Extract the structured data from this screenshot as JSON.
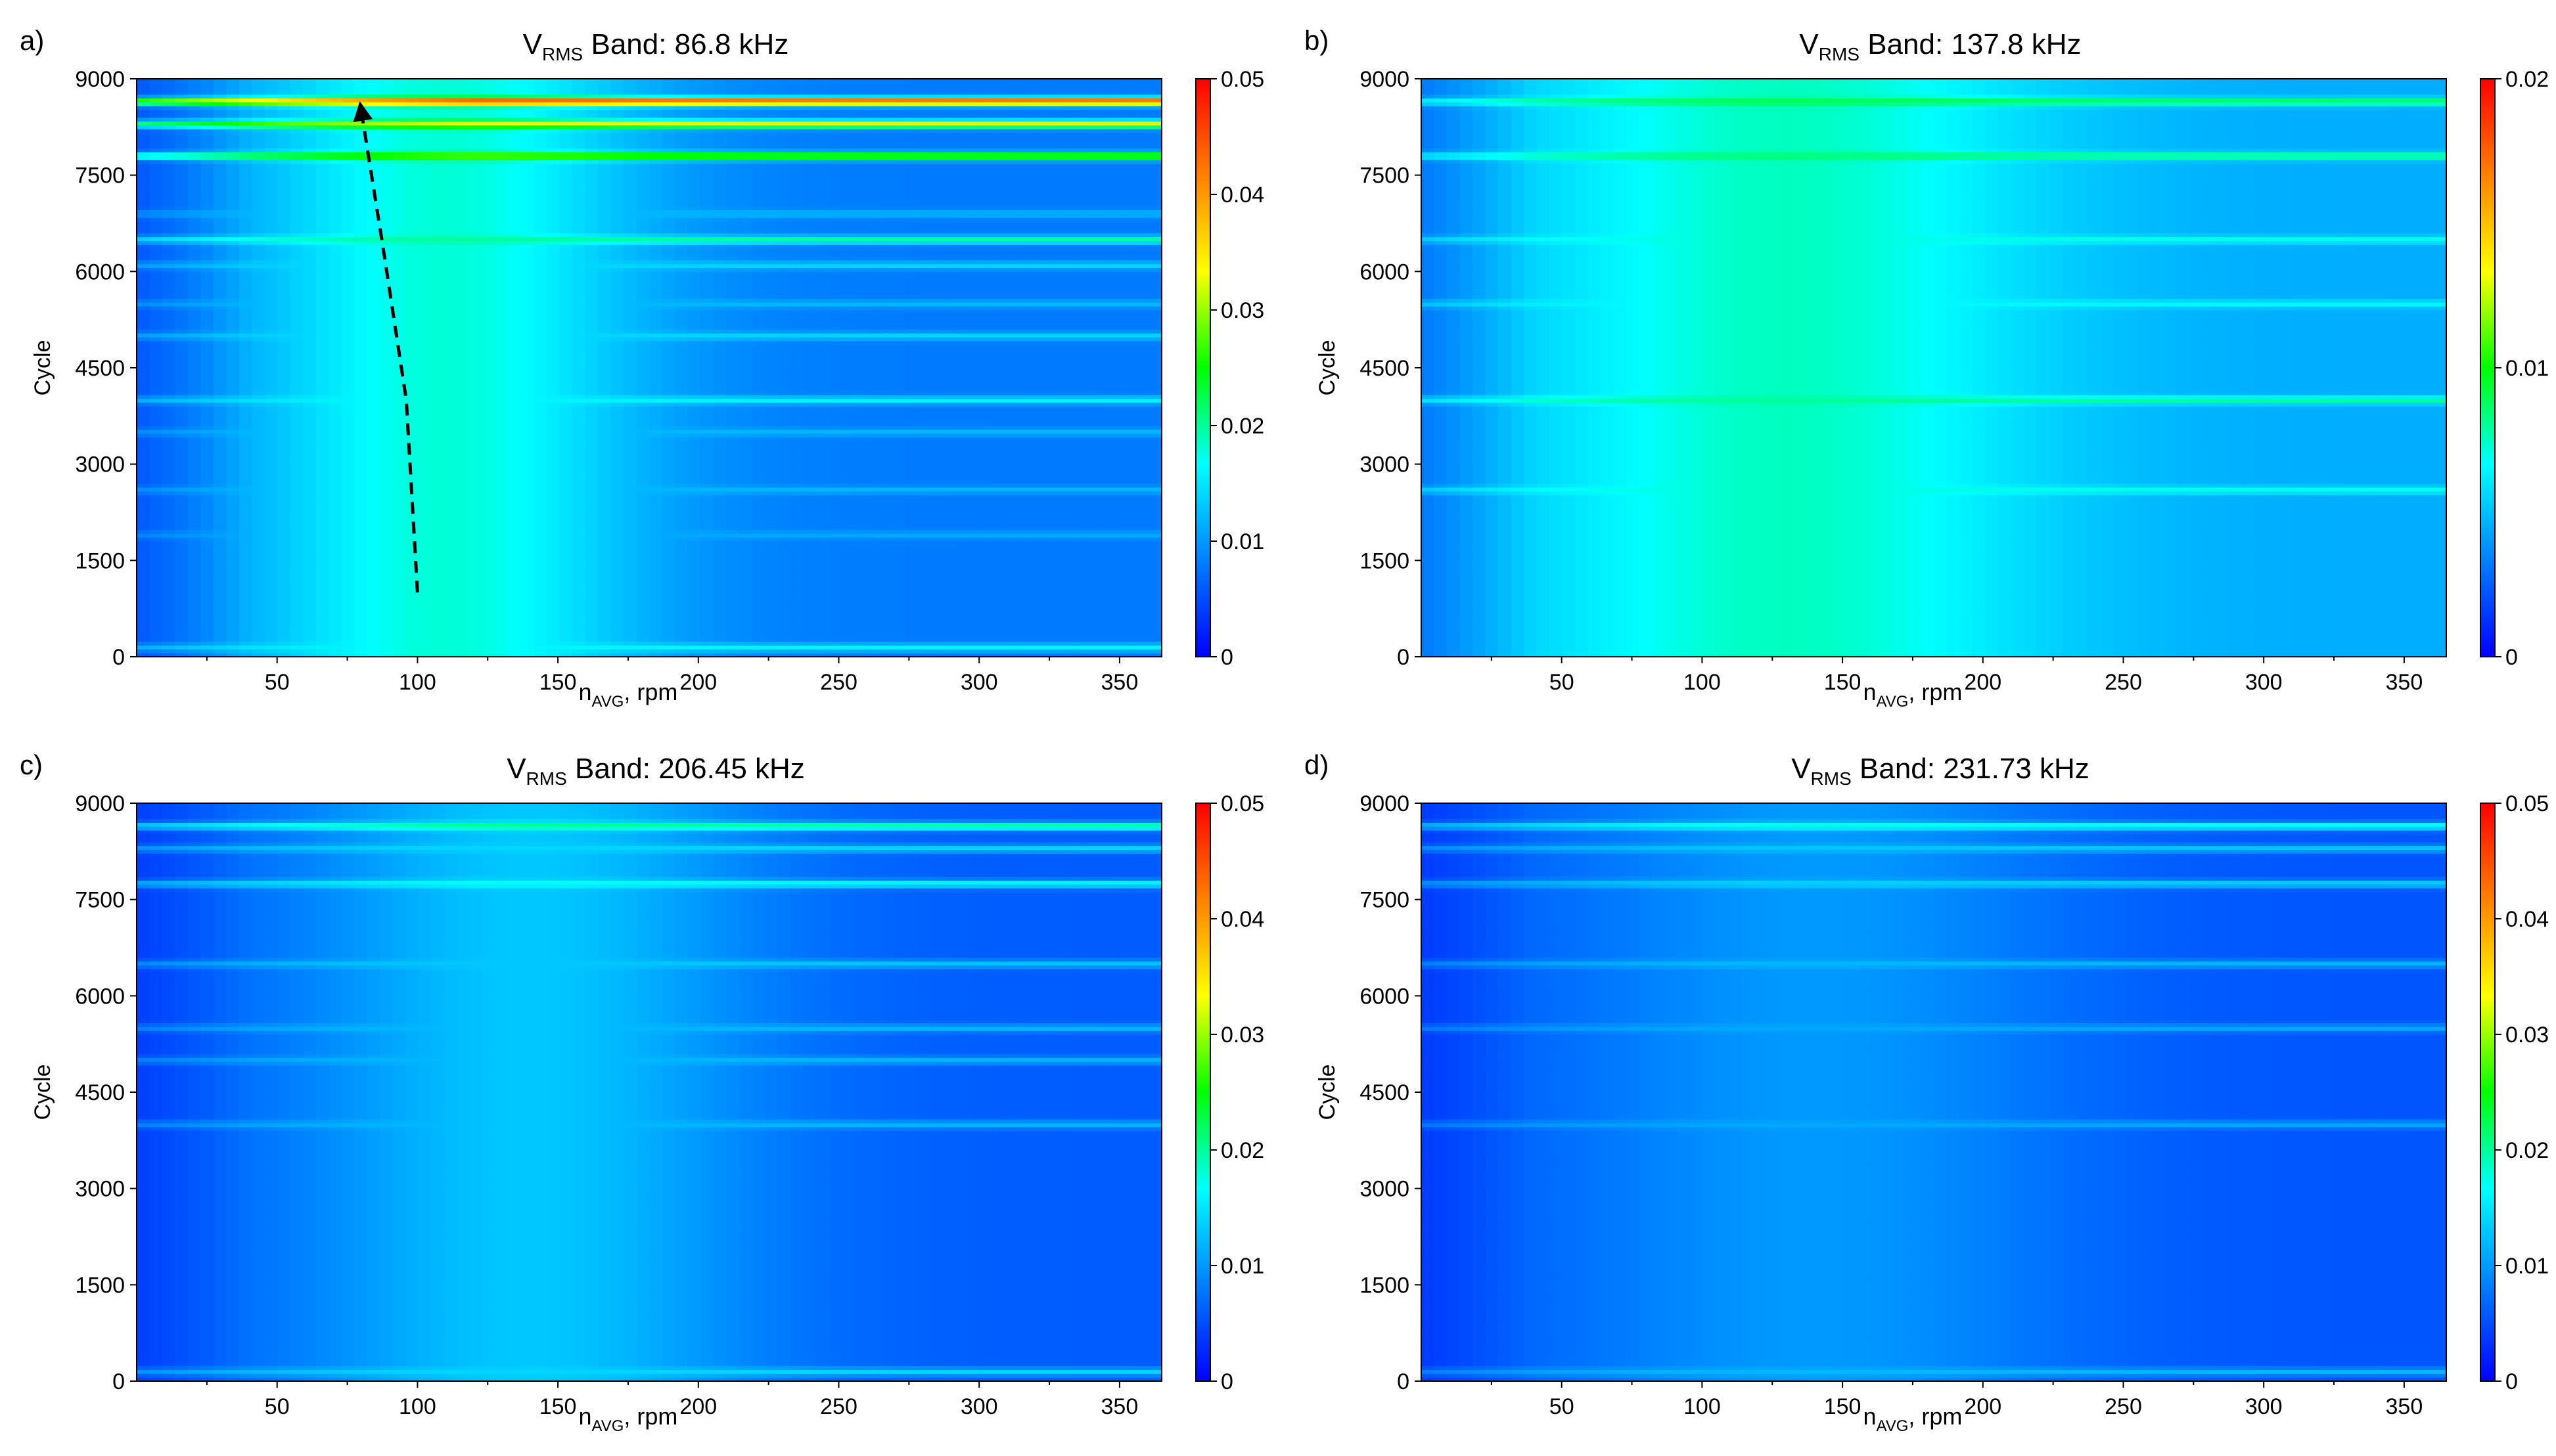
{
  "figure": {
    "colormap": [
      "#0000ff",
      "#0080ff",
      "#00ffff",
      "#00ff00",
      "#ffff00",
      "#ff8000",
      "#ff0000"
    ]
  },
  "chart_data": [
    {
      "type": "heatmap",
      "panel_label": "a)",
      "title_prefix": "V",
      "title_subscript": "RMS",
      "title_suffix": " Band: 86.8 kHz",
      "xlabel_main": "n",
      "xlabel_subscript": "AVG",
      "xlabel_suffix": ", rpm",
      "ylabel": "Cycle",
      "xlim": [
        0,
        365
      ],
      "ylim": [
        0,
        9000
      ],
      "x_ticks": [
        50,
        100,
        150,
        200,
        250,
        300,
        350
      ],
      "x_tick_labels": [
        "50",
        "100",
        "150",
        "200",
        "250",
        "300",
        "350"
      ],
      "y_ticks": [
        0,
        1500,
        3000,
        4500,
        6000,
        7500,
        9000
      ],
      "y_tick_labels": [
        "0",
        "1500",
        "3000",
        "4500",
        "6000",
        "7500",
        "9000"
      ],
      "colorbar_range": [
        0,
        0.05
      ],
      "colorbar_ticks": [
        0,
        0.01,
        0.02,
        0.03,
        0.04,
        0.05
      ],
      "colorbar_tick_labels": [
        "0",
        "0.01",
        "0.02",
        "0.03",
        "0.04",
        "0.05"
      ],
      "base_level": 0.008,
      "blob_level": 0.018,
      "blob_center_rpm": 110,
      "blob_width_rpm": 70,
      "stripes": [
        {
          "cycle": 8650,
          "value": 0.046
        },
        {
          "cycle": 8300,
          "value": 0.033
        },
        {
          "cycle": 7800,
          "value": 0.029
        },
        {
          "cycle": 6900,
          "value": 0.012
        },
        {
          "cycle": 6500,
          "value": 0.02
        },
        {
          "cycle": 6100,
          "value": 0.014
        },
        {
          "cycle": 5500,
          "value": 0.012
        },
        {
          "cycle": 5000,
          "value": 0.014
        },
        {
          "cycle": 4000,
          "value": 0.016
        },
        {
          "cycle": 3500,
          "value": 0.012
        },
        {
          "cycle": 2600,
          "value": 0.012
        },
        {
          "cycle": 1900,
          "value": 0.011
        },
        {
          "cycle": 150,
          "value": 0.016
        }
      ],
      "trend_arrow": {
        "x": [
          100,
          96,
          88,
          80
        ],
        "y": [
          1000,
          4000,
          6300,
          8500
        ]
      }
    },
    {
      "type": "heatmap",
      "panel_label": "b)",
      "title_prefix": "V",
      "title_subscript": "RMS",
      "title_suffix": " Band: 137.8 kHz",
      "xlabel_main": "n",
      "xlabel_subscript": "AVG",
      "xlabel_suffix": ", rpm",
      "ylabel": "Cycle",
      "xlim": [
        0,
        365
      ],
      "ylim": [
        0,
        9000
      ],
      "x_ticks": [
        50,
        100,
        150,
        200,
        250,
        300,
        350
      ],
      "x_tick_labels": [
        "50",
        "100",
        "150",
        "200",
        "250",
        "300",
        "350"
      ],
      "y_ticks": [
        0,
        1500,
        3000,
        4500,
        6000,
        7500,
        9000
      ],
      "y_tick_labels": [
        "0",
        "1500",
        "3000",
        "4500",
        "6000",
        "7500",
        "9000"
      ],
      "colorbar_range": [
        0,
        0.02
      ],
      "colorbar_ticks": [
        0,
        0.01,
        0.02
      ],
      "colorbar_tick_labels": [
        "0",
        "0.01",
        "0.02"
      ],
      "base_level": 0.0045,
      "blob_level": 0.0075,
      "blob_center_rpm": 130,
      "blob_width_rpm": 90,
      "stripes": [
        {
          "cycle": 8650,
          "value": 0.009
        },
        {
          "cycle": 7800,
          "value": 0.0085
        },
        {
          "cycle": 6500,
          "value": 0.007
        },
        {
          "cycle": 5500,
          "value": 0.0065
        },
        {
          "cycle": 4000,
          "value": 0.008
        },
        {
          "cycle": 2600,
          "value": 0.007
        }
      ]
    },
    {
      "type": "heatmap",
      "panel_label": "c)",
      "title_prefix": "V",
      "title_subscript": "RMS",
      "title_suffix": " Band: 206.45 kHz",
      "xlabel_main": "n",
      "xlabel_subscript": "AVG",
      "xlabel_suffix": ", rpm",
      "ylabel": "Cycle",
      "xlim": [
        0,
        365
      ],
      "ylim": [
        0,
        9000
      ],
      "x_ticks": [
        50,
        100,
        150,
        200,
        250,
        300,
        350
      ],
      "x_tick_labels": [
        "50",
        "100",
        "150",
        "200",
        "250",
        "300",
        "350"
      ],
      "y_ticks": [
        0,
        1500,
        3000,
        4500,
        6000,
        7500,
        9000
      ],
      "y_tick_labels": [
        "0",
        "1500",
        "3000",
        "4500",
        "6000",
        "7500",
        "9000"
      ],
      "colorbar_range": [
        0,
        0.05
      ],
      "colorbar_ticks": [
        0,
        0.01,
        0.02,
        0.03,
        0.04,
        0.05
      ],
      "colorbar_tick_labels": [
        "0",
        "0.01",
        "0.02",
        "0.03",
        "0.04",
        "0.05"
      ],
      "base_level": 0.006,
      "blob_level": 0.013,
      "blob_center_rpm": 140,
      "blob_width_rpm": 80,
      "stripes": [
        {
          "cycle": 8650,
          "value": 0.021
        },
        {
          "cycle": 8300,
          "value": 0.014
        },
        {
          "cycle": 7750,
          "value": 0.017
        },
        {
          "cycle": 6500,
          "value": 0.013
        },
        {
          "cycle": 5500,
          "value": 0.012
        },
        {
          "cycle": 5000,
          "value": 0.012
        },
        {
          "cycle": 4000,
          "value": 0.012
        },
        {
          "cycle": 150,
          "value": 0.014
        }
      ]
    },
    {
      "type": "heatmap",
      "panel_label": "d)",
      "title_prefix": "V",
      "title_subscript": "RMS",
      "title_suffix": " Band: 231.73 kHz",
      "xlabel_main": "n",
      "xlabel_subscript": "AVG",
      "xlabel_suffix": ", rpm",
      "ylabel": "Cycle",
      "xlim": [
        0,
        365
      ],
      "ylim": [
        0,
        9000
      ],
      "x_ticks": [
        50,
        100,
        150,
        200,
        250,
        300,
        350
      ],
      "x_tick_labels": [
        "50",
        "100",
        "150",
        "200",
        "250",
        "300",
        "350"
      ],
      "y_ticks": [
        0,
        1500,
        3000,
        4500,
        6000,
        7500,
        9000
      ],
      "y_tick_labels": [
        "0",
        "1500",
        "3000",
        "4500",
        "6000",
        "7500",
        "9000"
      ],
      "colorbar_range": [
        0,
        0.05
      ],
      "colorbar_ticks": [
        0,
        0.01,
        0.02,
        0.03,
        0.04,
        0.05
      ],
      "colorbar_tick_labels": [
        "0",
        "0.01",
        "0.02",
        "0.03",
        "0.04",
        "0.05"
      ],
      "base_level": 0.0055,
      "blob_level": 0.01,
      "blob_center_rpm": 140,
      "blob_width_rpm": 90,
      "stripes": [
        {
          "cycle": 8650,
          "value": 0.018
        },
        {
          "cycle": 8300,
          "value": 0.013
        },
        {
          "cycle": 7750,
          "value": 0.014
        },
        {
          "cycle": 6500,
          "value": 0.012
        },
        {
          "cycle": 5500,
          "value": 0.011
        },
        {
          "cycle": 4000,
          "value": 0.011
        },
        {
          "cycle": 150,
          "value": 0.012
        }
      ]
    }
  ]
}
